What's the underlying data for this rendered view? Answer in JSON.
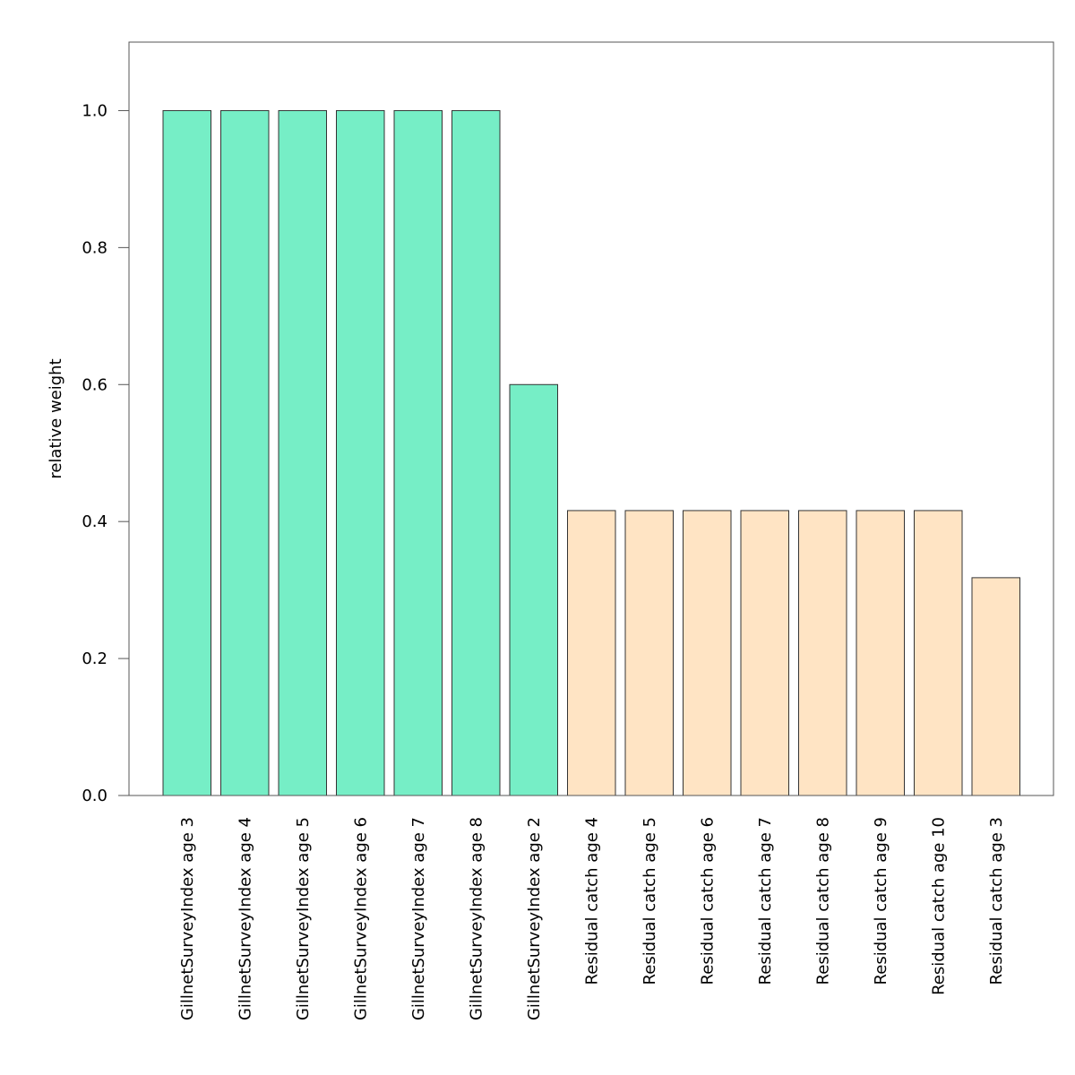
{
  "chart_data": {
    "type": "bar",
    "title": "",
    "xlabel": "",
    "ylabel": "relative weight",
    "ylim": [
      0,
      1.1
    ],
    "yticks": [
      0.0,
      0.2,
      0.4,
      0.6,
      0.8,
      1.0
    ],
    "ytick_labels": [
      "0.0",
      "0.2",
      "0.4",
      "0.6",
      "0.8",
      "1.0"
    ],
    "grid": false,
    "legend": "none",
    "categories": [
      "GillnetSurveyIndex age 3",
      "GillnetSurveyIndex age 4",
      "GillnetSurveyIndex age 5",
      "GillnetSurveyIndex age 6",
      "GillnetSurveyIndex age 7",
      "GillnetSurveyIndex age 8",
      "GillnetSurveyIndex age 2",
      "Residual catch age 4",
      "Residual catch age 5",
      "Residual catch age 6",
      "Residual catch age 7",
      "Residual catch age 8",
      "Residual catch age 9",
      "Residual catch age 10",
      "Residual catch age 3"
    ],
    "values": [
      1.0,
      1.0,
      1.0,
      1.0,
      1.0,
      1.0,
      0.6,
      0.416,
      0.416,
      0.416,
      0.416,
      0.416,
      0.416,
      0.416,
      0.318
    ],
    "bar_colors": [
      "#76eec6",
      "#76eec6",
      "#76eec6",
      "#76eec6",
      "#76eec6",
      "#76eec6",
      "#76eec6",
      "#ffe4c4",
      "#ffe4c4",
      "#ffe4c4",
      "#ffe4c4",
      "#ffe4c4",
      "#ffe4c4",
      "#ffe4c4",
      "#ffe4c4"
    ],
    "bar_edge_color": "#333333",
    "axis_color": "#555555"
  }
}
